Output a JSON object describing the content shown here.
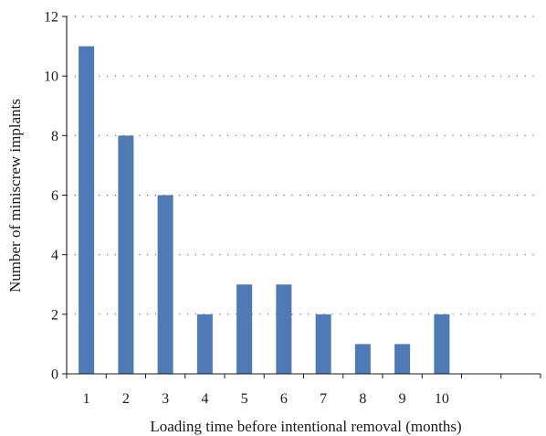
{
  "chart_data": {
    "type": "bar",
    "categories": [
      "1",
      "2",
      "3",
      "4",
      "5",
      "6",
      "7",
      "8",
      "9",
      "10"
    ],
    "values": [
      11,
      8,
      6,
      2,
      3,
      3,
      2,
      1,
      1,
      2
    ],
    "xlabel": "Loading time before intentional removal (months)",
    "ylabel": "Number of miniscrew implants",
    "ylim": [
      0,
      12
    ],
    "yticks": [
      0,
      2,
      4,
      6,
      8,
      10,
      12
    ],
    "x_slots": 12,
    "grid": "horizontal dotted",
    "bar_color": "#4f7ab6"
  }
}
